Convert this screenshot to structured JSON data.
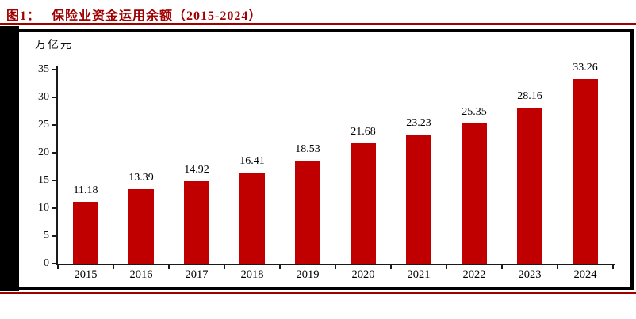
{
  "figure": {
    "label": "图1：",
    "title": "保险业资金运用余额（2015-2024）"
  },
  "colors": {
    "title_red": "#A00000",
    "rule_red": "#A00000",
    "bar_red": "#C00000",
    "axis_black": "#1a1a1a",
    "frame_black": "#000000"
  },
  "chart_data": {
    "type": "bar",
    "title": "保险业资金运用余额（2015-2024）",
    "unit_label": "万亿元",
    "categories": [
      "2015",
      "2016",
      "2017",
      "2018",
      "2019",
      "2020",
      "2021",
      "2022",
      "2023",
      "2024"
    ],
    "values": [
      11.18,
      13.39,
      14.92,
      16.41,
      18.53,
      21.68,
      23.23,
      25.35,
      28.16,
      33.26
    ],
    "xlabel": "",
    "ylabel": "万亿元",
    "ylim": [
      0,
      35
    ],
    "ytick_step": 5,
    "grid": false,
    "legend": "none",
    "value_labels": true,
    "bar_color": "#C00000"
  }
}
